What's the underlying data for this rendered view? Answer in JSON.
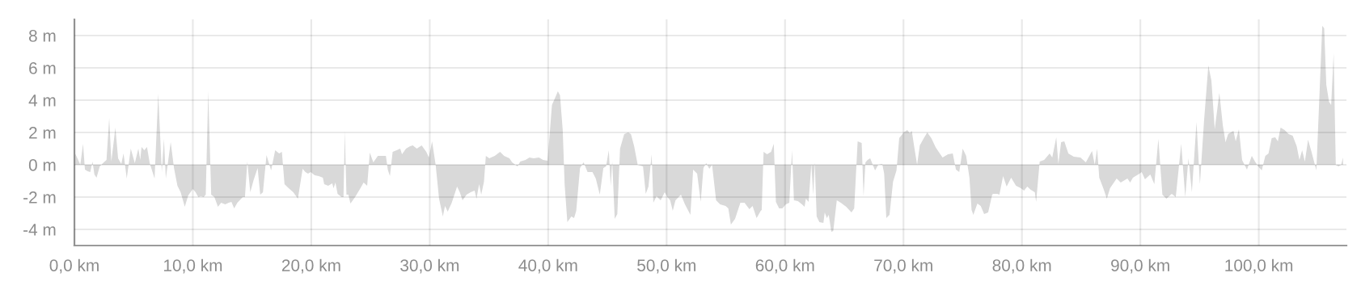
{
  "chart_data": {
    "type": "area",
    "grid": true,
    "xlim": [
      0,
      107.4
    ],
    "ylim": [
      -5,
      9
    ],
    "xticks": [
      {
        "value": 0,
        "label": "0,0 km"
      },
      {
        "value": 10,
        "label": "10,0 km"
      },
      {
        "value": 20,
        "label": "20,0 km"
      },
      {
        "value": 30,
        "label": "30,0 km"
      },
      {
        "value": 40,
        "label": "40,0 km"
      },
      {
        "value": 50,
        "label": "50,0 km"
      },
      {
        "value": 60,
        "label": "60,0 km"
      },
      {
        "value": 70,
        "label": "70,0 km"
      },
      {
        "value": 80,
        "label": "80,0 km"
      },
      {
        "value": 90,
        "label": "90,0 km"
      },
      {
        "value": 100,
        "label": "100,0 km"
      }
    ],
    "yticks": [
      {
        "value": -4,
        "label": "-4 m"
      },
      {
        "value": -2,
        "label": "-2 m"
      },
      {
        "value": 0,
        "label": "0 m"
      },
      {
        "value": 2,
        "label": "2 m"
      },
      {
        "value": 4,
        "label": "4 m"
      },
      {
        "value": 6,
        "label": "6 m"
      },
      {
        "value": 8,
        "label": "8 m"
      }
    ],
    "x": [
      0,
      0.32,
      0.5,
      0.73,
      0.89,
      1.12,
      1.34,
      1.53,
      1.69,
      1.87,
      2.14,
      2.48,
      2.71,
      2.94,
      3.12,
      3.46,
      3.69,
      3.96,
      4.15,
      4.42,
      4.76,
      5.1,
      5.4,
      5.56,
      5.67,
      5.9,
      6.13,
      6.36,
      6.77,
      7.08,
      7.38,
      7.56,
      7.72,
      8.13,
      8.41,
      8.7,
      8.97,
      9.32,
      9.61,
      10.0,
      10.23,
      10.46,
      10.68,
      10.91,
      11.09,
      11.3,
      11.55,
      11.82,
      12.12,
      12.39,
      12.73,
      13.03,
      13.26,
      13.49,
      13.76,
      14.21,
      14.4,
      14.6,
      14.85,
      15.13,
      15.47,
      15.69,
      15.92,
      16.22,
      16.38,
      16.61,
      16.95,
      17.29,
      17.52,
      17.74,
      18.09,
      18.48,
      18.87,
      19.27,
      19.5,
      19.73,
      19.95,
      20.29,
      20.63,
      20.98,
      21.09,
      21.43,
      21.77,
      21.88,
      22.04,
      22.22,
      22.56,
      22.72,
      22.83,
      22.97,
      23.13,
      23.31,
      23.7,
      24.15,
      24.42,
      24.72,
      24.94,
      25.24,
      25.62,
      25.96,
      26.3,
      26.46,
      26.64,
      26.87,
      27.21,
      27.51,
      27.66,
      28.0,
      28.34,
      28.57,
      28.91,
      29.32,
      29.71,
      29.93,
      30.2,
      30.5,
      30.79,
      31.11,
      31.29,
      31.52,
      31.86,
      32.31,
      32.54,
      32.77,
      33.11,
      33.45,
      33.79,
      33.95,
      34.17,
      34.35,
      34.58,
      34.74,
      35.03,
      35.49,
      35.94,
      36.28,
      36.73,
      36.96,
      37.14,
      37.41,
      37.64,
      38.09,
      38.42,
      38.77,
      39.22,
      39.57,
      39.95,
      40.14,
      40.32,
      40.59,
      40.82,
      41.0,
      41.23,
      41.39,
      41.62,
      41.96,
      42.19,
      42.37,
      42.69,
      42.99,
      43.33,
      43.74,
      44.02,
      44.36,
      44.66,
      44.89,
      45.12,
      45.28,
      45.41,
      45.62,
      45.84,
      46.07,
      46.42,
      46.76,
      46.99,
      47.26,
      47.56,
      48.01,
      48.24,
      48.47,
      48.74,
      48.88,
      49.15,
      49.5,
      49.84,
      50.07,
      50.3,
      50.52,
      50.75,
      51.21,
      51.55,
      52.01,
      52.24,
      52.58,
      52.88,
      53.11,
      53.34,
      53.61,
      53.84,
      54.18,
      54.52,
      54.98,
      55.21,
      55.43,
      55.78,
      56.23,
      56.58,
      56.99,
      57.26,
      57.6,
      57.95,
      58.03,
      58.19,
      58.48,
      58.82,
      59.05,
      59.23,
      59.5,
      59.77,
      60.07,
      60.36,
      60.59,
      60.75,
      61.09,
      61.43,
      61.65,
      61.76,
      61.99,
      62.22,
      62.38,
      62.51,
      62.67,
      62.9,
      63.24,
      63.35,
      63.53,
      63.69,
      63.91,
      64.07,
      64.37,
      64.71,
      65.16,
      65.61,
      65.84,
      66.13,
      66.47,
      66.63,
      66.79,
      66.97,
      67.19,
      67.38,
      67.6,
      67.87,
      68.21,
      68.37,
      68.55,
      68.82,
      69.12,
      69.41,
      69.64,
      70.02,
      70.32,
      70.54,
      70.7,
      70.93,
      71.15,
      71.38,
      71.72,
      72.01,
      72.35,
      72.74,
      73.3,
      73.76,
      74.16,
      74.43,
      74.71,
      75.0,
      75.29,
      75.57,
      75.75,
      75.9,
      76.24,
      76.52,
      76.81,
      77.15,
      77.49,
      77.57,
      77.91,
      78.1,
      78.41,
      78.71,
      79.09,
      79.5,
      79.91,
      80.18,
      80.45,
      80.75,
      81.09,
      81.2,
      81.5,
      81.88,
      82.34,
      82.56,
      82.9,
      83.08,
      83.31,
      83.58,
      83.92,
      84.38,
      84.94,
      85.4,
      85.62,
      85.92,
      86.15,
      86.35,
      86.53,
      86.87,
      87.17,
      87.44,
      88.0,
      88.34,
      88.91,
      89.14,
      89.37,
      89.93,
      90.11,
      90.39,
      90.84,
      91.18,
      91.52,
      91.86,
      92.2,
      92.65,
      92.99,
      93.45,
      93.79,
      94.06,
      94.35,
      94.74,
      95.03,
      95.37,
      95.74,
      96.0,
      96.28,
      96.67,
      96.96,
      97.19,
      97.41,
      97.86,
      98.05,
      98.32,
      98.59,
      99.0,
      99.41,
      99.68,
      99.95,
      100.25,
      100.55,
      100.82,
      101.09,
      101.39,
      101.61,
      101.84,
      102.18,
      102.52,
      102.86,
      103.2,
      103.43,
      103.66,
      103.89,
      104.16,
      104.45,
      104.86,
      105.14,
      105.36,
      105.52,
      105.7,
      105.93,
      106.11,
      106.32,
      106.5,
      106.73,
      106.95,
      107.11
    ],
    "series": [
      {
        "color": "#d9d9d9",
        "values": [
          0.8,
          0.3,
          0,
          1.3,
          -0.3,
          -0.4,
          -0.45,
          0.2,
          -0.6,
          -0.8,
          -0.1,
          0.15,
          0.3,
          2.9,
          0.2,
          2.3,
          0.4,
          0.05,
          0.7,
          -0.85,
          1.0,
          0.1,
          1.0,
          0.3,
          1.1,
          0.9,
          1.1,
          0.1,
          -0.85,
          4.4,
          -0.45,
          1.6,
          -0.85,
          1.4,
          -0.2,
          -1.3,
          -1.7,
          -2.6,
          -1.9,
          -1.5,
          -1.7,
          -2.0,
          -1.95,
          -2.0,
          -1.85,
          4.55,
          -1.85,
          -2.0,
          -2.6,
          -2.35,
          -2.45,
          -2.35,
          -2.3,
          -2.7,
          -2.35,
          -2.0,
          -2.0,
          0.2,
          -1.7,
          -0.95,
          -0.2,
          -1.85,
          -1.7,
          0.6,
          0.2,
          -0.35,
          0.9,
          0.7,
          0.8,
          -1.2,
          -1.45,
          -1.7,
          -2.1,
          -0.25,
          -0.45,
          -0.55,
          -0.45,
          -0.65,
          -0.7,
          -0.8,
          -1.2,
          -1.3,
          -1.15,
          -1.45,
          -1.1,
          -1.8,
          -2.0,
          -2.0,
          2.1,
          -1.85,
          -1.85,
          -2.4,
          -2.0,
          -1.45,
          -1.1,
          -1.3,
          0.75,
          0.15,
          0.55,
          0.55,
          0.55,
          -0.3,
          -0.7,
          0.8,
          0.9,
          1.0,
          0.65,
          1.0,
          1.15,
          1.2,
          1.0,
          1.2,
          0.8,
          0.45,
          1.45,
          0,
          -2.1,
          -3.2,
          -2.55,
          -2.9,
          -2.35,
          -1.35,
          -1.7,
          -2.2,
          -1.85,
          -1.7,
          -1.6,
          -2.1,
          -1.2,
          -1.85,
          -1.05,
          0.55,
          0.4,
          0.55,
          0.8,
          0.55,
          0.4,
          0.15,
          0.05,
          -0.1,
          0.2,
          0.3,
          0.45,
          0.4,
          0.45,
          0.3,
          0.25,
          2.0,
          3.7,
          4.15,
          4.55,
          4.3,
          2.15,
          -1.2,
          -3.55,
          -3.2,
          -3.3,
          -2.85,
          -0.2,
          0.15,
          -0.45,
          -0.45,
          -0.85,
          -1.85,
          -0.2,
          -0.1,
          0.9,
          -1.3,
          0.2,
          -3.35,
          -3.05,
          1.0,
          1.9,
          2.0,
          1.9,
          1.15,
          0,
          -0.1,
          -1.8,
          -1.35,
          0.65,
          -2.35,
          -1.95,
          -2.2,
          -1.7,
          -2.0,
          -2.2,
          -2.85,
          -2.2,
          -1.85,
          -2.45,
          -3.1,
          -0.3,
          -0.55,
          -2.3,
          -0.2,
          0.1,
          -0.25,
          0,
          -2.2,
          -2.45,
          -2.55,
          -2.7,
          -3.7,
          -3.35,
          -2.35,
          -2.35,
          -2.75,
          -2.55,
          -3.3,
          -2.85,
          -2.8,
          0.8,
          0.65,
          0.8,
          1.3,
          -2.3,
          -2.7,
          -2.7,
          -2.45,
          -2.35,
          0.9,
          -2.2,
          -2.25,
          -2.45,
          -2.6,
          -2.1,
          -2.3,
          0.05,
          -1.85,
          0.15,
          -3.2,
          -3.55,
          -3.6,
          -2.95,
          -3.3,
          -3.1,
          -4.15,
          -4.1,
          -2.2,
          -2.35,
          -2.6,
          -2.95,
          -2.7,
          1.45,
          1.35,
          -1.95,
          0.15,
          0.3,
          0.4,
          0.05,
          -0.35,
          0,
          0.05,
          -0.55,
          -3.3,
          -3.1,
          -1.05,
          -0.35,
          1.65,
          2.0,
          2.15,
          1.95,
          2.1,
          1.0,
          0,
          1.2,
          1.65,
          2.0,
          1.65,
          1.05,
          0.45,
          0.65,
          0.7,
          -0.3,
          -0.45,
          1.0,
          0.55,
          -0.8,
          -2.8,
          -3.1,
          -2.4,
          -2.55,
          -3.05,
          -2.95,
          -1.85,
          -1.8,
          -1.8,
          -1.85,
          -0.7,
          -1.35,
          -0.8,
          -1.3,
          -1.45,
          -1.6,
          -1.35,
          -1.55,
          -1.7,
          -2.3,
          0.2,
          0.3,
          0.7,
          0.45,
          1.7,
          0.05,
          1.4,
          1.45,
          0.7,
          0.5,
          0.45,
          0.15,
          0.45,
          0.85,
          0,
          1.0,
          -0.8,
          -1.45,
          -2.1,
          -1.45,
          -0.85,
          -1.1,
          -0.85,
          -1.1,
          -0.8,
          -0.55,
          -0.45,
          -0.9,
          -0.6,
          -1.2,
          1.6,
          -1.85,
          -2.1,
          -1.8,
          -2.0,
          1.3,
          -2.0,
          0.4,
          -1.7,
          2.65,
          -1.2,
          2.65,
          6.15,
          5.2,
          2.2,
          4.45,
          2.45,
          1.4,
          1.9,
          2.1,
          1.45,
          2.2,
          0.3,
          -0.3,
          0.55,
          0.2,
          -0.1,
          -0.35,
          0.55,
          0.7,
          1.65,
          1.7,
          1.45,
          2.3,
          2.15,
          1.9,
          1.8,
          1.15,
          0.3,
          0.9,
          0.2,
          1.55,
          0.8,
          -0.35,
          4.65,
          8.6,
          8.45,
          4.95,
          3.9,
          3.7,
          6.9,
          0,
          -0.1,
          0,
          0.45
        ]
      }
    ]
  }
}
